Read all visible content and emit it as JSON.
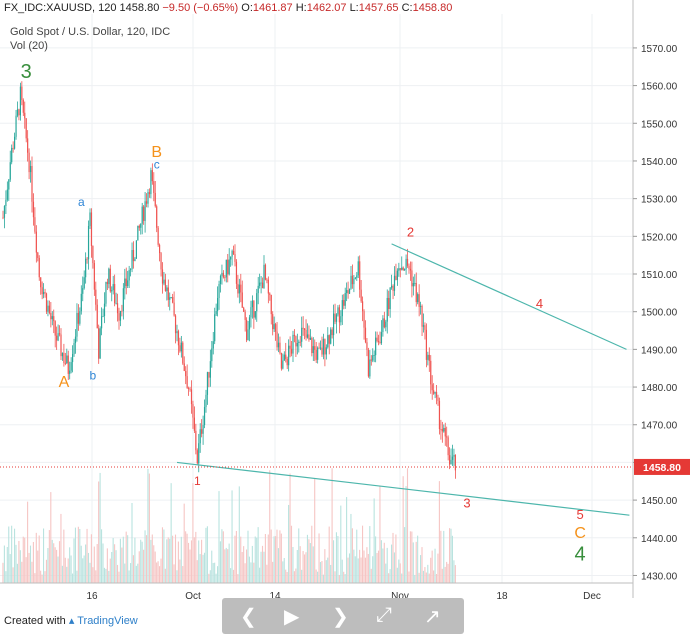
{
  "header": {
    "symbol_line": "FX_IDC:XAUUSD, 120",
    "last": "1458.80",
    "change": "−9.50 (−0.65%)",
    "o_label": "O:",
    "o": "1461.87",
    "h_label": "H:",
    "h": "1462.07",
    "l_label": "L:",
    "l": "1457.65",
    "c_label": "C:",
    "c": "1458.80",
    "title": "Gold Spot / U.S. Dollar, 120, IDC",
    "volume_label": "Vol (20)"
  },
  "footer": {
    "created_with": "Created with",
    "brand": "TradingView"
  },
  "colors": {
    "up": "#26a69a",
    "down": "#ef5350",
    "trendline": "#4db6ac",
    "wave_green": "#388e3c",
    "wave_orange": "#f5921b",
    "wave_blue": "#2f86d6",
    "wave_red": "#e53935",
    "price_marker": "#e53935"
  },
  "chart_data": {
    "type": "candlestick",
    "y_ticks": [
      1430,
      1440,
      1450,
      1460,
      1470,
      1480,
      1490,
      1500,
      1510,
      1520,
      1530,
      1540,
      1550,
      1560,
      1570
    ],
    "ylim": [
      1428,
      1579
    ],
    "x_ticks": [
      "16",
      "Oct",
      "14",
      "Nov",
      "18",
      "Dec"
    ],
    "current_price": 1458.8,
    "price_path": [
      {
        "bar": 0,
        "price": 1525
      },
      {
        "bar": 5,
        "price": 1540
      },
      {
        "bar": 12,
        "price": 1557
      },
      {
        "bar": 18,
        "price": 1540
      },
      {
        "bar": 25,
        "price": 1510
      },
      {
        "bar": 35,
        "price": 1495
      },
      {
        "bar": 45,
        "price": 1485
      },
      {
        "bar": 55,
        "price": 1505
      },
      {
        "bar": 60,
        "price": 1524
      },
      {
        "bar": 66,
        "price": 1490
      },
      {
        "bar": 72,
        "price": 1510
      },
      {
        "bar": 80,
        "price": 1500
      },
      {
        "bar": 92,
        "price": 1518
      },
      {
        "bar": 102,
        "price": 1536
      },
      {
        "bar": 110,
        "price": 1510
      },
      {
        "bar": 120,
        "price": 1495
      },
      {
        "bar": 128,
        "price": 1480
      },
      {
        "bar": 134,
        "price": 1461
      },
      {
        "bar": 140,
        "price": 1478
      },
      {
        "bar": 148,
        "price": 1505
      },
      {
        "bar": 158,
        "price": 1515
      },
      {
        "bar": 168,
        "price": 1495
      },
      {
        "bar": 180,
        "price": 1510
      },
      {
        "bar": 192,
        "price": 1485
      },
      {
        "bar": 205,
        "price": 1495
      },
      {
        "bar": 218,
        "price": 1488
      },
      {
        "bar": 232,
        "price": 1500
      },
      {
        "bar": 245,
        "price": 1512
      },
      {
        "bar": 252,
        "price": 1485
      },
      {
        "bar": 262,
        "price": 1496
      },
      {
        "bar": 272,
        "price": 1513
      },
      {
        "bar": 280,
        "price": 1512
      },
      {
        "bar": 288,
        "price": 1500
      },
      {
        "bar": 296,
        "price": 1480
      },
      {
        "bar": 302,
        "price": 1470
      },
      {
        "bar": 308,
        "price": 1461
      },
      {
        "bar": 312,
        "price": 1459
      }
    ],
    "trendlines": [
      {
        "from": {
          "bar": 268,
          "price": 1518
        },
        "to": {
          "bar": 430,
          "price": 1490
        }
      },
      {
        "from": {
          "bar": 120,
          "price": 1460
        },
        "to": {
          "bar": 432,
          "price": 1446
        }
      }
    ],
    "wave_labels": [
      {
        "text": "3",
        "bar": 16,
        "price": 1562,
        "color": "wave_green",
        "size": 20
      },
      {
        "text": "A",
        "bar": 42,
        "price": 1480,
        "color": "wave_orange",
        "size": 16
      },
      {
        "text": "a",
        "bar": 54,
        "price": 1528,
        "color": "wave_blue",
        "size": 12
      },
      {
        "text": "b",
        "bar": 62,
        "price": 1482,
        "color": "wave_blue",
        "size": 12
      },
      {
        "text": "B",
        "bar": 106,
        "price": 1541,
        "color": "wave_orange",
        "size": 16
      },
      {
        "text": "c",
        "bar": 106,
        "price": 1538,
        "color": "wave_blue",
        "size": 12
      },
      {
        "text": "1",
        "bar": 134,
        "price": 1454,
        "color": "wave_red",
        "size": 12
      },
      {
        "text": "2",
        "bar": 281,
        "price": 1520,
        "color": "wave_red",
        "size": 13
      },
      {
        "text": "4",
        "bar": 370,
        "price": 1501,
        "color": "wave_red",
        "size": 13
      },
      {
        "text": "3",
        "bar": 320,
        "price": 1448,
        "color": "wave_red",
        "size": 13
      },
      {
        "text": "5",
        "bar": 398,
        "price": 1445,
        "color": "wave_red",
        "size": 13
      },
      {
        "text": "C",
        "bar": 398,
        "price": 1440,
        "color": "wave_orange",
        "size": 16
      },
      {
        "text": "4",
        "bar": 398,
        "price": 1434,
        "color": "wave_green",
        "size": 20
      }
    ]
  }
}
